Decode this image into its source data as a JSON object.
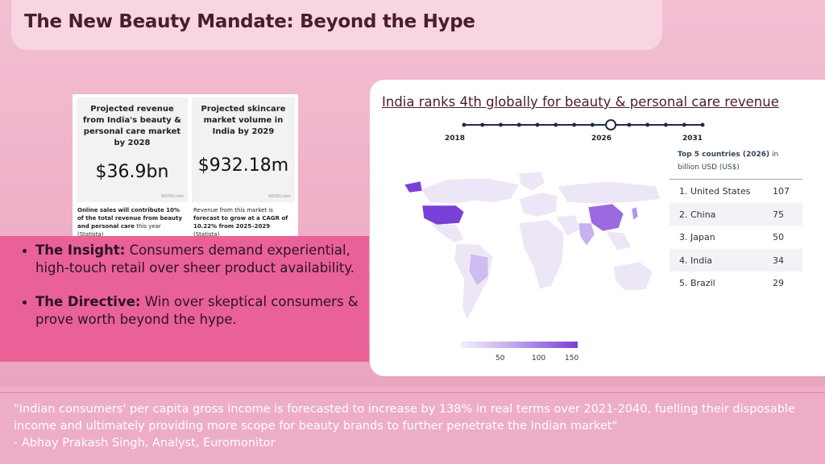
{
  "slide": {
    "title": "The New Beauty Mandate: Beyond the Hype"
  },
  "stats": {
    "left": {
      "heading": "Projected revenue from India's beauty & personal care market by 2028",
      "value": "$36.9bn",
      "source": "WGSN.com",
      "note_bold": "Online sales will contribute 10% of the total revenue from beauty and personal care",
      "note_rest": " this year (",
      "note_link": "Statista",
      "note_end": ")"
    },
    "right": {
      "heading": "Projected skincare market volume in India by 2029",
      "value": "$932.18m",
      "source": "WGSN.com",
      "note_start": "Revenue from this market is ",
      "note_bold": "forecast to grow at a CAGR of 10.22% from 2025–2029",
      "note_rest": " (",
      "note_link": "Statista",
      "note_end": ")"
    }
  },
  "insights": [
    {
      "label": "The Insight:",
      "text": " Consumers demand experiential, high-touch retail over sheer product availability."
    },
    {
      "label": "The Directive:",
      "text": " Win over skeptical consumers & prove worth beyond the hype."
    }
  ],
  "map_panel": {
    "title": "India ranks 4th globally for beauty & personal care revenue",
    "timeline": {
      "start": "2018",
      "current": "2026",
      "end": "2031",
      "steps": 14,
      "current_index": 8
    },
    "legend_ticks": [
      "50",
      "100",
      "150"
    ],
    "colors": {
      "low": "#f4eefc",
      "mid": "#c7b1ee",
      "high": "#7a3fd6",
      "land": "#ece6f6"
    },
    "top5": {
      "heading_bold": "Top 5 countries (2026)",
      "heading_rest": " in billion USD (US$)",
      "rows": [
        {
          "name": "1. United States",
          "value": "107"
        },
        {
          "name": "2. China",
          "value": "75"
        },
        {
          "name": "3. Japan",
          "value": "50"
        },
        {
          "name": "4. India",
          "value": "34"
        },
        {
          "name": "5. Brazil",
          "value": "29"
        }
      ]
    }
  },
  "quote": {
    "text": "\"Indian consumers' per capita gross income is forecasted to increase by 138% in real terms over 2021-2040, fuelling their disposable income and ultimately providing more scope for beauty brands to further penetrate the Indian market\"",
    "attribution": "- Abhay Prakash Singh, Analyst, Euromonitor"
  }
}
